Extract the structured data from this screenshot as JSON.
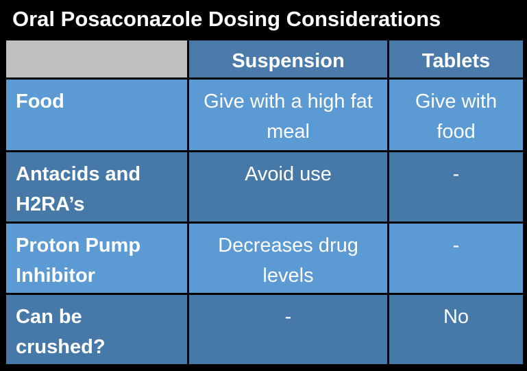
{
  "title": "Oral Posaconazole Dosing Considerations",
  "table": {
    "columns": [
      "",
      "Suspension",
      "Tablets"
    ],
    "rows": [
      {
        "label": "Food",
        "suspension": "Give with a high fat meal",
        "tablets": "Give with food"
      },
      {
        "label": "Antacids and H2RA’s",
        "suspension": "Avoid use",
        "tablets": "-"
      },
      {
        "label": "Proton Pump Inhibitor",
        "suspension": "Decreases drug levels",
        "tablets": "-"
      },
      {
        "label": "Can be crushed?",
        "suspension": "-",
        "tablets": "No"
      }
    ]
  },
  "colors": {
    "title_bg": "#000000",
    "header_empty_bg": "#bfbfbf",
    "header_blue": "#4a7bab",
    "row_light": "#5b9ad2",
    "row_dark": "#4779a8",
    "border": "#000000",
    "text": "#ffffff"
  }
}
